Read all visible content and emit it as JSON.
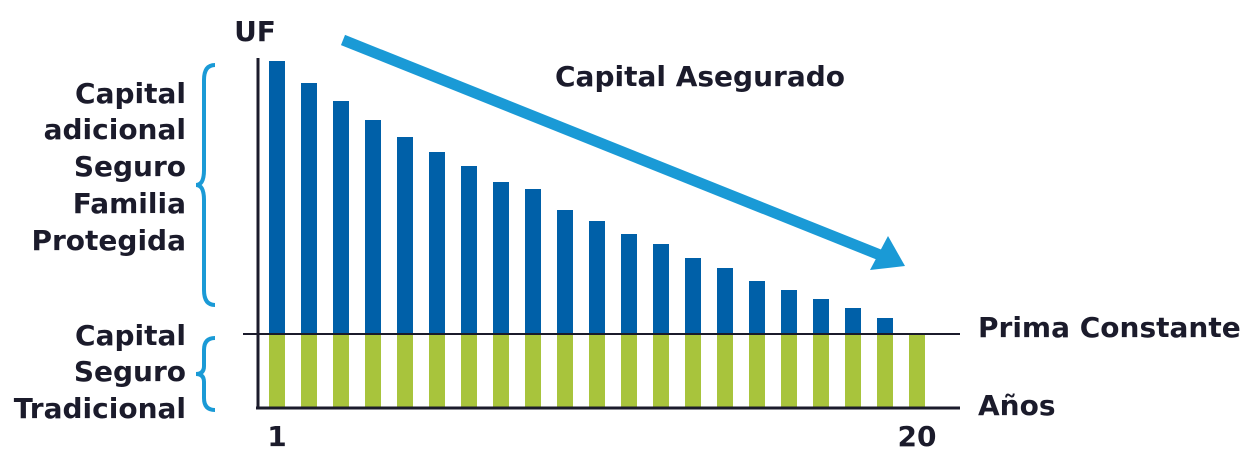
{
  "chart_data": {
    "type": "stacked-bar",
    "y_label": "UF",
    "x_label": "Años",
    "annotations": [
      "Capital Asegurado",
      "Prima Constante"
    ],
    "categories": [
      "1",
      null,
      null,
      null,
      null,
      null,
      null,
      null,
      null,
      null,
      null,
      null,
      null,
      null,
      null,
      null,
      null,
      null,
      null,
      null,
      "20"
    ],
    "series": [
      {
        "name": [
          "Capital",
          "Seguro",
          "Tradicional"
        ],
        "color": "#a8c43c",
        "values": [
          74,
          74,
          74,
          74,
          74,
          74,
          74,
          74,
          74,
          74,
          74,
          74,
          74,
          74,
          74,
          74,
          74,
          74,
          74,
          74,
          74
        ]
      },
      {
        "name": [
          "Capital",
          "adicional",
          "Seguro",
          "Familia",
          "Protegida"
        ],
        "color": "#0060a8",
        "values": [
          273,
          251,
          233,
          214,
          197,
          182,
          168,
          152,
          145,
          124,
          113,
          100,
          90,
          76,
          66,
          53,
          44,
          35,
          26,
          16,
          null
        ]
      }
    ],
    "ylim": [
      0,
      350
    ]
  }
}
